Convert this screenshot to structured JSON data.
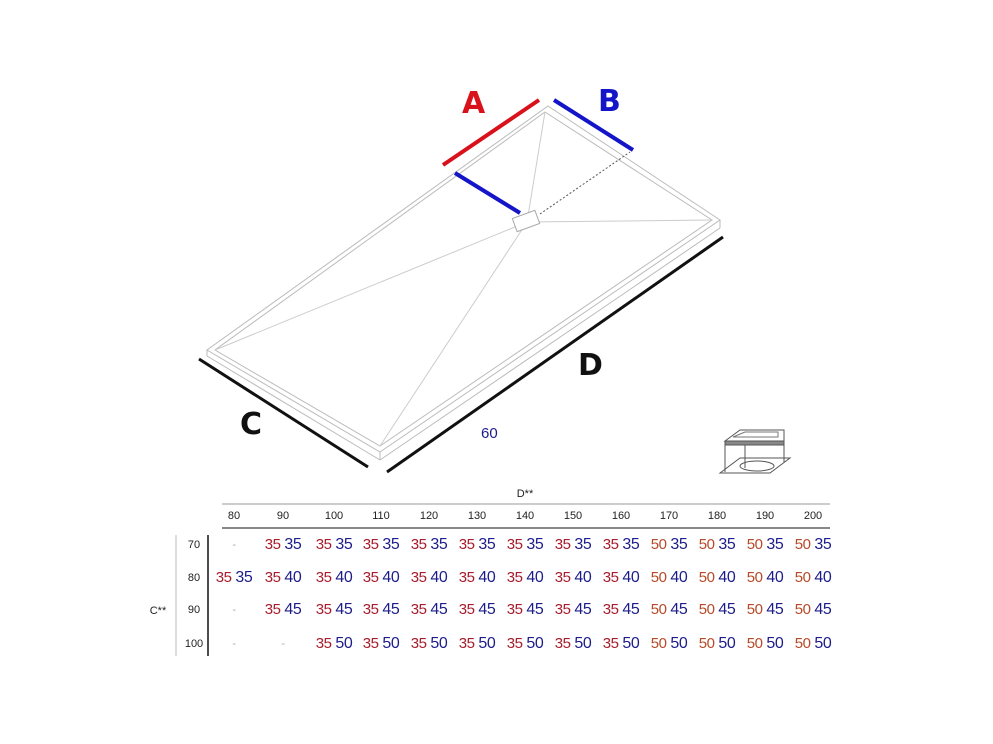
{
  "labels": {
    "a": "A",
    "b": "B",
    "c": "C",
    "d": "D",
    "width_value": "60"
  },
  "colors": {
    "a_line": "#d8111b",
    "b_line": "#1414c8",
    "first_value": "#a81c2c",
    "first_value_50": "#b84a2a",
    "second_value": "#1c1c8a"
  },
  "table": {
    "column_axis": "D**",
    "row_axis": "C**",
    "columns": [
      "80",
      "90",
      "100",
      "110",
      "120",
      "130",
      "140",
      "150",
      "160",
      "170",
      "180",
      "190",
      "200"
    ],
    "rows": [
      {
        "label": "70",
        "cells": [
          "-",
          "35 35",
          "35 35",
          "35 35",
          "35 35",
          "35 35",
          "35 35",
          "35 35",
          "35 35",
          "50 35",
          "50 35",
          "50 35",
          "50 35"
        ]
      },
      {
        "label": "80",
        "cells": [
          "35 35",
          "35 40",
          "35 40",
          "35 40",
          "35 40",
          "35 40",
          "35 40",
          "35 40",
          "35 40",
          "50 40",
          "50 40",
          "50 40",
          "50 40"
        ]
      },
      {
        "label": "90",
        "cells": [
          "-",
          "35 45",
          "35 45",
          "35 45",
          "35 45",
          "35 45",
          "35 45",
          "35 45",
          "35 45",
          "50 45",
          "50 45",
          "50 45",
          "50 45"
        ]
      },
      {
        "label": "100",
        "cells": [
          "-",
          "-",
          "35 50",
          "35 50",
          "35 50",
          "35 50",
          "35 50",
          "35 50",
          "35 50",
          "50 50",
          "50 50",
          "50 50",
          "50 50"
        ]
      }
    ]
  }
}
